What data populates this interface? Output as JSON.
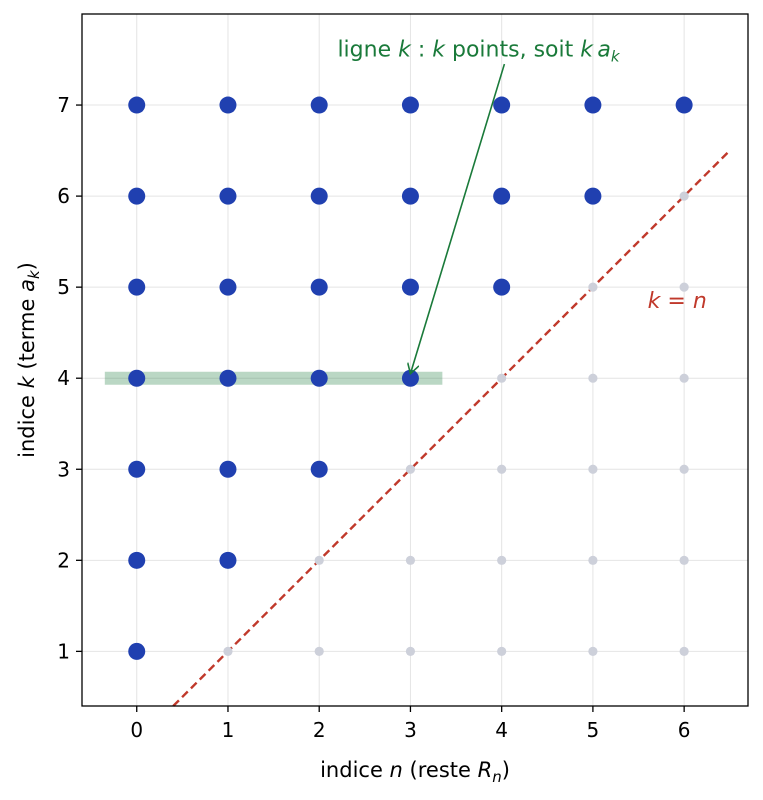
{
  "chart_data": {
    "type": "scatter",
    "xlabel": {
      "prefix": "indice ",
      "var": "n",
      "mid": " (reste ",
      "sym": "R",
      "sub": "n",
      "suffix": ")"
    },
    "ylabel": {
      "prefix": "indice ",
      "var": "k",
      "mid": " (terme ",
      "sym": "a",
      "sub": "k",
      "suffix": ")"
    },
    "xlim": [
      -0.6,
      6.7
    ],
    "ylim": [
      0.4,
      8.0
    ],
    "xticks": [
      0,
      1,
      2,
      3,
      4,
      5,
      6
    ],
    "yticks": [
      1,
      2,
      3,
      4,
      5,
      6,
      7
    ],
    "grid": true,
    "series": [
      {
        "role": "filled",
        "color": "#2040b0",
        "points": [
          [
            0,
            1
          ],
          [
            0,
            2
          ],
          [
            1,
            2
          ],
          [
            0,
            3
          ],
          [
            1,
            3
          ],
          [
            2,
            3
          ],
          [
            0,
            4
          ],
          [
            1,
            4
          ],
          [
            2,
            4
          ],
          [
            3,
            4
          ],
          [
            0,
            5
          ],
          [
            1,
            5
          ],
          [
            2,
            5
          ],
          [
            3,
            5
          ],
          [
            4,
            5
          ],
          [
            0,
            6
          ],
          [
            1,
            6
          ],
          [
            2,
            6
          ],
          [
            3,
            6
          ],
          [
            4,
            6
          ],
          [
            5,
            6
          ],
          [
            0,
            7
          ],
          [
            1,
            7
          ],
          [
            2,
            7
          ],
          [
            3,
            7
          ],
          [
            4,
            7
          ],
          [
            5,
            7
          ],
          [
            6,
            7
          ]
        ]
      },
      {
        "role": "empty",
        "color": "#cdd0da",
        "points": [
          [
            1,
            1
          ],
          [
            2,
            1
          ],
          [
            3,
            1
          ],
          [
            4,
            1
          ],
          [
            5,
            1
          ],
          [
            6,
            1
          ],
          [
            2,
            2
          ],
          [
            3,
            2
          ],
          [
            4,
            2
          ],
          [
            5,
            2
          ],
          [
            6,
            2
          ],
          [
            3,
            3
          ],
          [
            4,
            3
          ],
          [
            5,
            3
          ],
          [
            6,
            3
          ],
          [
            4,
            4
          ],
          [
            5,
            4
          ],
          [
            6,
            4
          ],
          [
            5,
            5
          ],
          [
            6,
            5
          ],
          [
            6,
            6
          ]
        ]
      }
    ],
    "diagonal": {
      "color": "#c0392b",
      "x": [
        0.4,
        6.5
      ],
      "y": [
        0.4,
        6.5
      ],
      "label": {
        "k": "k",
        "eq": " = ",
        "n": "n",
        "at": [
          5.6,
          4.85
        ]
      }
    },
    "highlight_row": {
      "k": 4,
      "x": [
        -0.35,
        3.35
      ],
      "color": "#1a7a3a"
    },
    "annotation": {
      "color": "#1a7a3a",
      "part1": "ligne ",
      "var1": "k",
      "part2": " : ",
      "var2": "k",
      "part3": " points, soit ",
      "var3": "k",
      "sym": "a",
      "sub": "k",
      "text_at": [
        2.2,
        7.62
      ],
      "arrow_from": [
        4.03,
        7.45
      ],
      "arrow_to": [
        3.0,
        4.05
      ]
    }
  }
}
